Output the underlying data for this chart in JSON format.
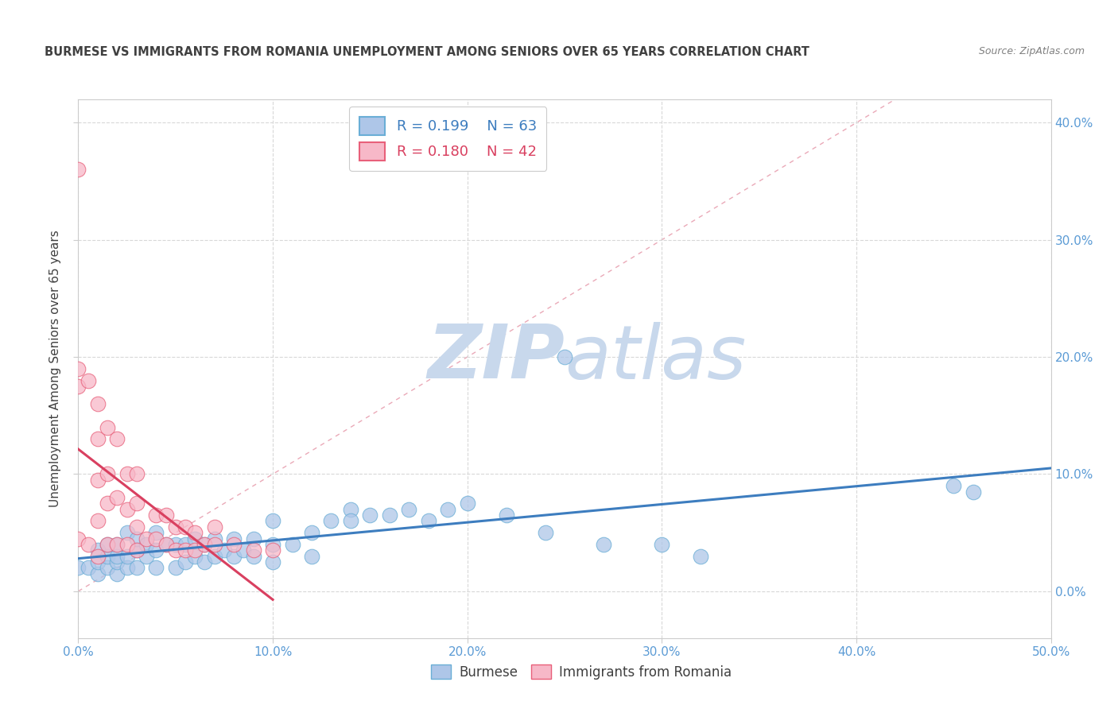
{
  "title": "BURMESE VS IMMIGRANTS FROM ROMANIA UNEMPLOYMENT AMONG SENIORS OVER 65 YEARS CORRELATION CHART",
  "source": "Source: ZipAtlas.com",
  "ylabel": "Unemployment Among Seniors over 65 years",
  "xlim": [
    0,
    0.5
  ],
  "ylim": [
    -0.04,
    0.42
  ],
  "yticks": [
    0.0,
    0.1,
    0.2,
    0.3,
    0.4
  ],
  "xticks": [
    0.0,
    0.1,
    0.2,
    0.3,
    0.4,
    0.5
  ],
  "burmese_color": "#aec6e8",
  "burmese_edge_color": "#6aaed6",
  "romania_color": "#f7b8c8",
  "romania_edge_color": "#e8607a",
  "burmese_line_color": "#3d7dbf",
  "romania_line_color": "#d94060",
  "ref_line_color": "#e8a0b0",
  "watermark_zip_color": "#c8d8ec",
  "watermark_atlas_color": "#c8d8ec",
  "tick_label_color": "#5b9bd5",
  "title_color": "#404040",
  "source_color": "#808080",
  "ylabel_color": "#404040",
  "legend_burmese_color": "#aec6e8",
  "legend_burmese_edge": "#6aaed6",
  "legend_romania_color": "#f7b8c8",
  "legend_romania_edge": "#e8607a",
  "R_burmese": 0.199,
  "N_burmese": 63,
  "R_romania": 0.18,
  "N_romania": 42,
  "burmese_x": [
    0.0,
    0.005,
    0.01,
    0.01,
    0.01,
    0.015,
    0.015,
    0.015,
    0.02,
    0.02,
    0.02,
    0.02,
    0.025,
    0.025,
    0.025,
    0.03,
    0.03,
    0.03,
    0.035,
    0.035,
    0.04,
    0.04,
    0.04,
    0.045,
    0.05,
    0.05,
    0.055,
    0.055,
    0.06,
    0.06,
    0.065,
    0.065,
    0.07,
    0.07,
    0.075,
    0.08,
    0.08,
    0.085,
    0.09,
    0.09,
    0.1,
    0.1,
    0.1,
    0.11,
    0.12,
    0.12,
    0.13,
    0.14,
    0.14,
    0.15,
    0.16,
    0.17,
    0.18,
    0.19,
    0.2,
    0.22,
    0.24,
    0.25,
    0.27,
    0.3,
    0.32,
    0.45,
    0.46
  ],
  "burmese_y": [
    0.02,
    0.02,
    0.015,
    0.025,
    0.035,
    0.02,
    0.03,
    0.04,
    0.015,
    0.025,
    0.03,
    0.04,
    0.02,
    0.03,
    0.05,
    0.02,
    0.035,
    0.045,
    0.03,
    0.04,
    0.02,
    0.035,
    0.05,
    0.04,
    0.02,
    0.04,
    0.025,
    0.04,
    0.03,
    0.045,
    0.025,
    0.04,
    0.03,
    0.045,
    0.035,
    0.03,
    0.045,
    0.035,
    0.03,
    0.045,
    0.025,
    0.04,
    0.06,
    0.04,
    0.03,
    0.05,
    0.06,
    0.07,
    0.06,
    0.065,
    0.065,
    0.07,
    0.06,
    0.07,
    0.075,
    0.065,
    0.05,
    0.2,
    0.04,
    0.04,
    0.03,
    0.09,
    0.085
  ],
  "romania_x": [
    0.0,
    0.0,
    0.0,
    0.0,
    0.005,
    0.005,
    0.01,
    0.01,
    0.01,
    0.01,
    0.01,
    0.015,
    0.015,
    0.015,
    0.015,
    0.02,
    0.02,
    0.02,
    0.025,
    0.025,
    0.025,
    0.03,
    0.03,
    0.03,
    0.03,
    0.035,
    0.04,
    0.04,
    0.045,
    0.045,
    0.05,
    0.05,
    0.055,
    0.055,
    0.06,
    0.06,
    0.065,
    0.07,
    0.07,
    0.08,
    0.09,
    0.1
  ],
  "romania_y": [
    0.36,
    0.19,
    0.175,
    0.045,
    0.18,
    0.04,
    0.16,
    0.13,
    0.095,
    0.06,
    0.03,
    0.14,
    0.1,
    0.075,
    0.04,
    0.13,
    0.08,
    0.04,
    0.1,
    0.07,
    0.04,
    0.1,
    0.075,
    0.055,
    0.035,
    0.045,
    0.065,
    0.045,
    0.065,
    0.04,
    0.055,
    0.035,
    0.055,
    0.035,
    0.05,
    0.035,
    0.04,
    0.055,
    0.04,
    0.04,
    0.035,
    0.035
  ],
  "background_color": "#ffffff",
  "grid_color": "#d8d8d8"
}
